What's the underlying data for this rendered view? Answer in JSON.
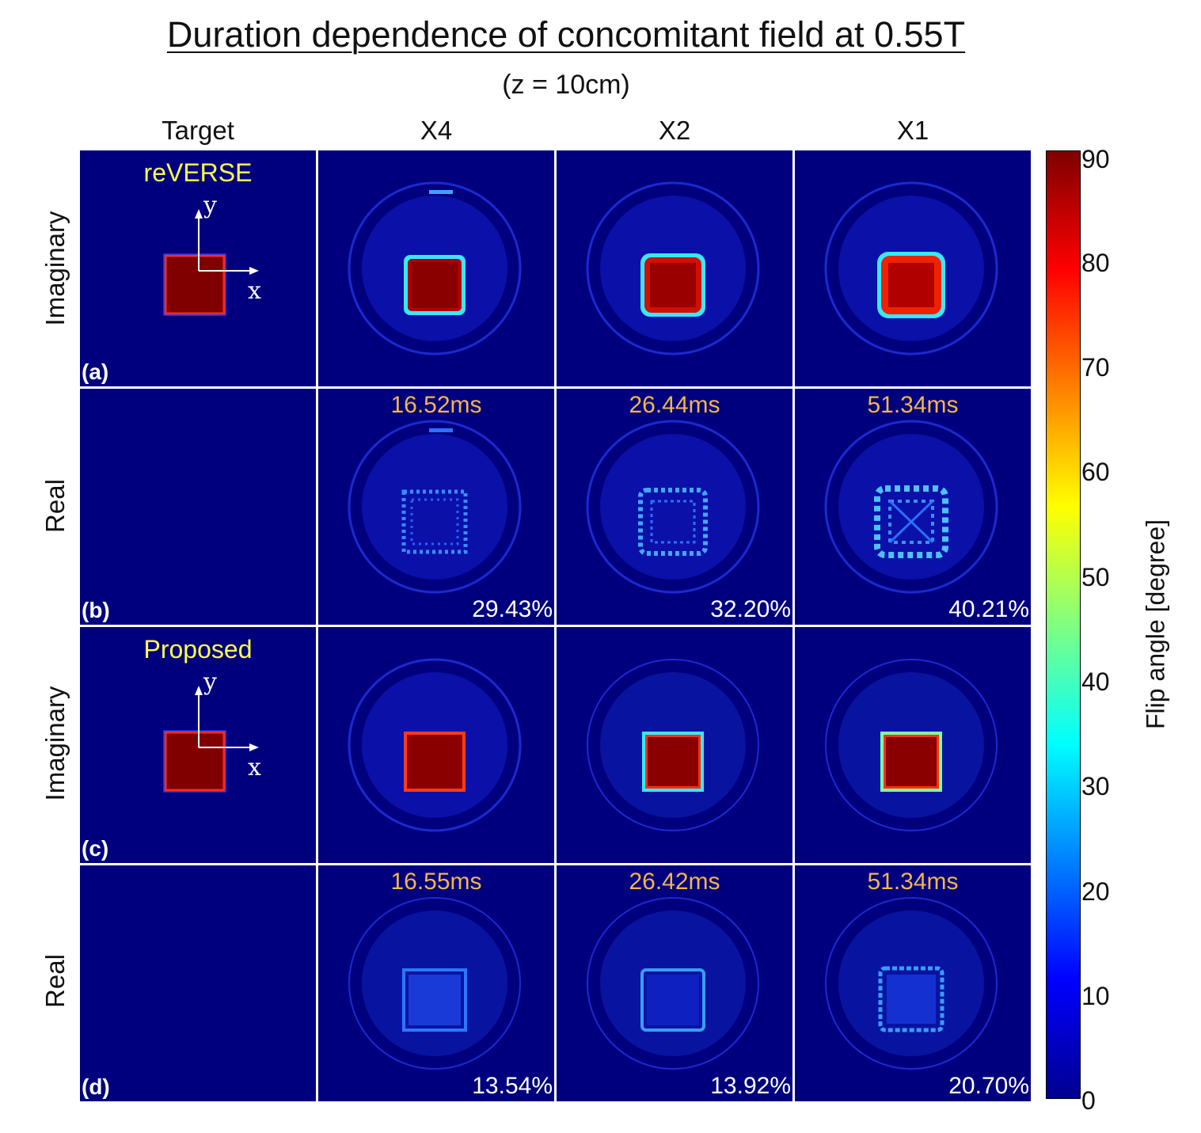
{
  "title": "Duration dependence of concomitant field at 0.55T",
  "subtitle": "(z = 10cm)",
  "columns": [
    "Target",
    "X4",
    "X2",
    "X1"
  ],
  "rows": [
    {
      "label": "Imaginary",
      "letter": "(a)",
      "method": "reVERSE",
      "durations": [],
      "percents": []
    },
    {
      "label": "Real",
      "letter": "(b)",
      "method": "",
      "durations": [
        "16.52ms",
        "26.44ms",
        "51.34ms"
      ],
      "percents": [
        "29.43%",
        "32.20%",
        "40.21%"
      ]
    },
    {
      "label": "Imaginary",
      "letter": "(c)",
      "method": "Proposed",
      "durations": [],
      "percents": []
    },
    {
      "label": "Real",
      "letter": "(d)",
      "method": "",
      "durations": [
        "16.55ms",
        "26.42ms",
        "51.34ms"
      ],
      "percents": [
        "13.54%",
        "13.92%",
        "20.70%"
      ]
    }
  ],
  "axes": {
    "x": "x",
    "y": "y"
  },
  "colorbar": {
    "label": "Flip angle [degree]",
    "ticks": [
      "0",
      "10",
      "20",
      "30",
      "40",
      "50",
      "60",
      "70",
      "80",
      "90"
    ],
    "min": 0,
    "max": 90,
    "colors": [
      "#00008f",
      "#0000ff",
      "#0080ff",
      "#00ffff",
      "#80ff80",
      "#ffff00",
      "#ff8000",
      "#ff0000",
      "#800000"
    ]
  }
}
